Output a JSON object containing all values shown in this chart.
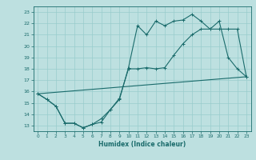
{
  "title": "",
  "xlabel": "Humidex (Indice chaleur)",
  "bg_color": "#bde0e0",
  "grid_color": "#99cccc",
  "line_color": "#1a6b6b",
  "xlim": [
    -0.5,
    23.5
  ],
  "ylim": [
    12.5,
    23.5
  ],
  "yticks": [
    13,
    14,
    15,
    16,
    17,
    18,
    19,
    20,
    21,
    22,
    23
  ],
  "xticks": [
    0,
    1,
    2,
    3,
    4,
    5,
    6,
    7,
    8,
    9,
    10,
    11,
    12,
    13,
    14,
    15,
    16,
    17,
    18,
    19,
    20,
    21,
    22,
    23
  ],
  "line1_x": [
    0,
    1,
    2,
    3,
    4,
    5,
    6,
    7,
    8,
    9,
    10,
    11,
    12,
    13,
    14,
    15,
    16,
    17,
    18,
    19,
    20,
    21,
    22,
    23
  ],
  "line1_y": [
    15.8,
    15.3,
    14.7,
    13.2,
    13.2,
    12.8,
    13.1,
    13.3,
    14.4,
    15.3,
    18.1,
    21.8,
    21.0,
    22.2,
    21.8,
    22.2,
    22.3,
    22.8,
    22.2,
    21.5,
    22.2,
    19.0,
    18.0,
    17.3
  ],
  "line2_x": [
    0,
    1,
    2,
    3,
    4,
    5,
    6,
    7,
    8,
    9,
    10,
    11,
    12,
    13,
    14,
    15,
    16,
    17,
    18,
    19,
    20,
    21,
    22,
    23
  ],
  "line2_y": [
    15.8,
    15.3,
    14.7,
    13.2,
    13.2,
    12.8,
    13.1,
    13.6,
    14.4,
    15.4,
    18.0,
    18.0,
    18.1,
    18.0,
    18.1,
    19.2,
    20.2,
    21.0,
    21.5,
    21.5,
    21.5,
    21.5,
    21.5,
    17.3
  ],
  "line3_x": [
    0,
    23
  ],
  "line3_y": [
    15.8,
    17.3
  ]
}
